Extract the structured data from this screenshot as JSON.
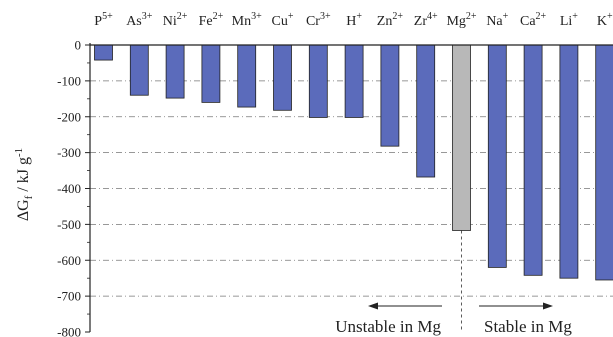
{
  "chart_data": {
    "type": "bar",
    "ylabel": "ΔG_f / kJ g^-1",
    "ylim": [
      -800,
      0
    ],
    "yticks": [
      0,
      -100,
      -200,
      -300,
      -400,
      -500,
      -600,
      -700,
      -800
    ],
    "grid": "horizontal dash-dot",
    "categories": [
      {
        "base": "P",
        "sup": "5+"
      },
      {
        "base": "As",
        "sup": "3+"
      },
      {
        "base": "Ni",
        "sup": "2+"
      },
      {
        "base": "Fe",
        "sup": "2+"
      },
      {
        "base": "Mn",
        "sup": "3+"
      },
      {
        "base": "Cu",
        "sup": "+"
      },
      {
        "base": "Cr",
        "sup": "3+"
      },
      {
        "base": "H",
        "sup": "+"
      },
      {
        "base": "Zn",
        "sup": "2+"
      },
      {
        "base": "Zr",
        "sup": "4+"
      },
      {
        "base": "Mg",
        "sup": "2+"
      },
      {
        "base": "Na",
        "sup": "+"
      },
      {
        "base": "Ca",
        "sup": "2+"
      },
      {
        "base": "Li",
        "sup": "+"
      },
      {
        "base": "K",
        "sup": "+"
      }
    ],
    "values": [
      -42,
      -140,
      -148,
      -160,
      -173,
      -182,
      -202,
      -202,
      -282,
      -368,
      -517,
      -620,
      -642,
      -650,
      -655
    ],
    "colors": {
      "bar": "#5b6bbb",
      "reference_bar": "#b8b8b8",
      "reference_category": "Mg"
    },
    "annotations": {
      "left": "Unstable in Mg",
      "right": "Stable in Mg"
    }
  }
}
